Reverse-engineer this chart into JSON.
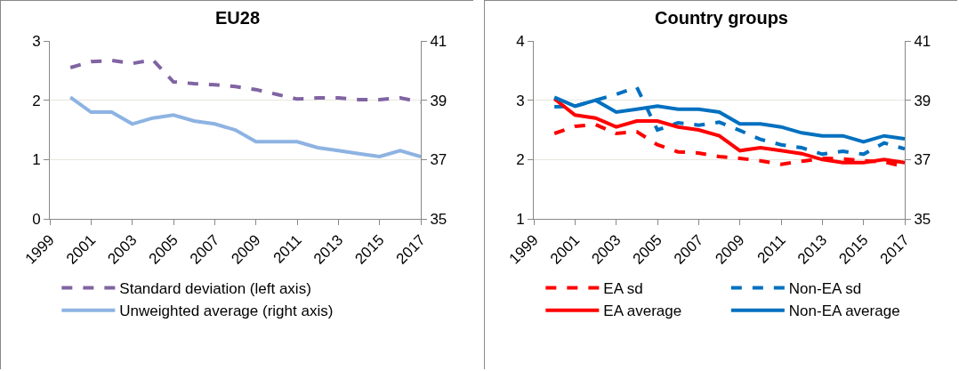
{
  "chart_data": [
    {
      "type": "line",
      "title": "EU28",
      "x": [
        2000,
        2001,
        2002,
        2003,
        2004,
        2005,
        2006,
        2007,
        2008,
        2009,
        2010,
        2011,
        2012,
        2013,
        2014,
        2015,
        2016,
        2017
      ],
      "xlim": [
        1999,
        2017
      ],
      "xticks": [
        1999,
        2001,
        2003,
        2005,
        2007,
        2009,
        2011,
        2013,
        2015,
        2017
      ],
      "ylim": [
        0,
        3
      ],
      "yticks": [
        0,
        1,
        2,
        3
      ],
      "y2lim": [
        35,
        41
      ],
      "y2ticks": [
        35,
        37,
        39,
        41
      ],
      "grid": "y",
      "legend": "bottom",
      "series": [
        {
          "name": "Standard deviation (left axis)",
          "color": "#8064a2",
          "line_style": "dashed",
          "values": [
            2.55,
            2.65,
            2.67,
            2.62,
            2.68,
            2.31,
            2.28,
            2.26,
            2.23,
            2.18,
            2.1,
            2.02,
            2.04,
            2.04,
            2.01,
            2.01,
            2.04,
            1.97
          ]
        },
        {
          "name": "Unweighted average (right axis)",
          "color": "#8db3e2",
          "line_style": "solid",
          "axis": "y2",
          "values": [
            39.1,
            38.6,
            38.6,
            38.2,
            38.4,
            38.5,
            38.3,
            38.2,
            38.0,
            37.6,
            37.6,
            37.6,
            37.4,
            37.3,
            37.2,
            37.1,
            37.3,
            37.1
          ]
        }
      ]
    },
    {
      "type": "line",
      "title": "Country groups",
      "x": [
        2000,
        2001,
        2002,
        2003,
        2004,
        2005,
        2006,
        2007,
        2008,
        2009,
        2010,
        2011,
        2012,
        2013,
        2014,
        2015,
        2016,
        2017
      ],
      "xlim": [
        1999,
        2017
      ],
      "xticks": [
        1999,
        2001,
        2003,
        2005,
        2007,
        2009,
        2011,
        2013,
        2015,
        2017
      ],
      "ylim": [
        1,
        4
      ],
      "yticks": [
        1,
        2,
        3,
        4
      ],
      "y2lim": [
        35,
        41
      ],
      "y2ticks": [
        35,
        37,
        39,
        41
      ],
      "grid": "y",
      "legend": "bottom",
      "series": [
        {
          "name": "EA sd",
          "color": "#ff0000",
          "line_style": "dashed",
          "values": [
            2.44,
            2.56,
            2.59,
            2.44,
            2.47,
            2.25,
            2.13,
            2.11,
            2.05,
            2.02,
            1.98,
            1.92,
            1.97,
            2.02,
            2.01,
            1.98,
            1.96,
            1.88
          ]
        },
        {
          "name": "Non-EA sd",
          "color": "#0070c0",
          "line_style": "dashed",
          "values": [
            2.89,
            2.9,
            3.0,
            3.1,
            3.22,
            2.5,
            2.62,
            2.58,
            2.63,
            2.49,
            2.34,
            2.25,
            2.2,
            2.09,
            2.14,
            2.09,
            2.28,
            2.18
          ]
        },
        {
          "name": "EA average",
          "color": "#ff0000",
          "line_style": "solid",
          "axis": "y2",
          "values": [
            39.05,
            38.5,
            38.4,
            38.1,
            38.3,
            38.3,
            38.1,
            38.0,
            37.8,
            37.3,
            37.4,
            37.3,
            37.2,
            37.0,
            36.9,
            36.9,
            37.0,
            36.9
          ]
        },
        {
          "name": "Non-EA average",
          "color": "#0070c0",
          "line_style": "solid",
          "axis": "y2",
          "values": [
            39.1,
            38.8,
            39.0,
            38.6,
            38.7,
            38.8,
            38.7,
            38.7,
            38.6,
            38.2,
            38.2,
            38.1,
            37.9,
            37.8,
            37.8,
            37.6,
            37.8,
            37.7
          ]
        }
      ]
    }
  ]
}
